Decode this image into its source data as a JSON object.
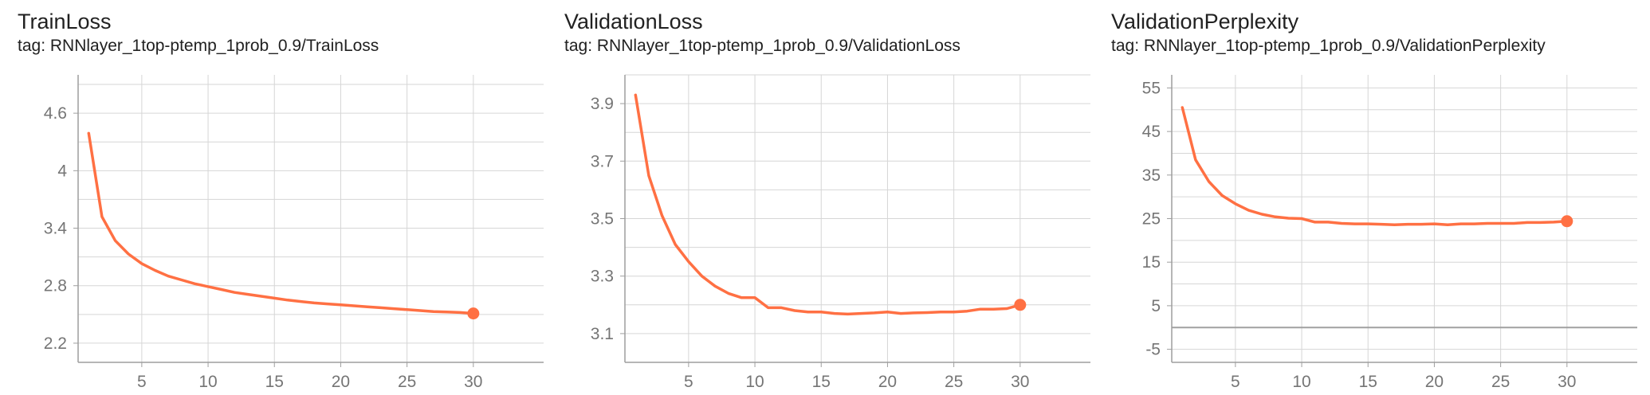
{
  "colors": {
    "series": "#FF7043",
    "grid": "#D6D6D6",
    "axis": "#9E9E9E",
    "tick_text": "#757575",
    "zero_line": "#A0A0A0"
  },
  "chart_data": [
    {
      "type": "line",
      "title": "TrainLoss",
      "subtitle": "tag: RNNlayer_1top-ptemp_1prob_0.9/TrainLoss",
      "xlabel": "",
      "ylabel": "",
      "xlim": [
        0.2,
        35.3
      ],
      "ylim": [
        2.0,
        5.0
      ],
      "xticks": [
        5,
        10,
        15,
        20,
        25,
        30
      ],
      "yticks": [
        2.2,
        2.8,
        3.4,
        4,
        4.6
      ],
      "ytick_labels": [
        "2.2",
        "2.8",
        "3.4",
        "4",
        "4.6"
      ],
      "grid": true,
      "series": [
        {
          "x": [
            1,
            2,
            3,
            4,
            5,
            6,
            7,
            8,
            9,
            10,
            11,
            12,
            13,
            14,
            15,
            16,
            17,
            18,
            19,
            20,
            21,
            22,
            23,
            24,
            25,
            26,
            27,
            28,
            29,
            30
          ],
          "values": [
            4.39,
            3.52,
            3.27,
            3.13,
            3.03,
            2.96,
            2.9,
            2.86,
            2.82,
            2.79,
            2.76,
            2.73,
            2.71,
            2.69,
            2.67,
            2.65,
            2.635,
            2.62,
            2.61,
            2.6,
            2.59,
            2.58,
            2.57,
            2.56,
            2.55,
            2.54,
            2.53,
            2.525,
            2.52,
            2.51
          ]
        }
      ]
    },
    {
      "type": "line",
      "title": "ValidationLoss",
      "subtitle": "tag: RNNlayer_1top-ptemp_1prob_0.9/ValidationLoss",
      "xlabel": "",
      "ylabel": "",
      "xlim": [
        0.2,
        35.3
      ],
      "ylim": [
        3.0,
        4.0
      ],
      "xticks": [
        5,
        10,
        15,
        20,
        25,
        30
      ],
      "yticks": [
        3.1,
        3.3,
        3.5,
        3.7,
        3.9
      ],
      "ytick_labels": [
        "3.1",
        "3.3",
        "3.5",
        "3.7",
        "3.9"
      ],
      "grid": true,
      "series": [
        {
          "x": [
            1,
            2,
            3,
            4,
            5,
            6,
            7,
            8,
            9,
            10,
            11,
            12,
            13,
            14,
            15,
            16,
            17,
            18,
            19,
            20,
            21,
            22,
            23,
            24,
            25,
            26,
            27,
            28,
            29,
            30
          ],
          "values": [
            3.93,
            3.65,
            3.51,
            3.41,
            3.35,
            3.3,
            3.265,
            3.24,
            3.225,
            3.225,
            3.19,
            3.19,
            3.18,
            3.175,
            3.175,
            3.17,
            3.168,
            3.17,
            3.172,
            3.175,
            3.17,
            3.172,
            3.173,
            3.175,
            3.175,
            3.178,
            3.185,
            3.185,
            3.187,
            3.2
          ]
        }
      ]
    },
    {
      "type": "line",
      "title": "ValidationPerplexity",
      "subtitle": "tag: RNNlayer_1top-ptemp_1prob_0.9/ValidationPerplexity",
      "xlabel": "",
      "ylabel": "",
      "xlim": [
        0.2,
        35.3
      ],
      "ylim": [
        -8,
        58
      ],
      "xticks": [
        5,
        10,
        15,
        20,
        25,
        30
      ],
      "yticks": [
        -5,
        5,
        15,
        25,
        35,
        45,
        55
      ],
      "ytick_labels": [
        "-5",
        "5",
        "15",
        "25",
        "35",
        "45",
        "55"
      ],
      "zero_line": true,
      "grid": true,
      "series": [
        {
          "x": [
            1,
            2,
            3,
            4,
            5,
            6,
            7,
            8,
            9,
            10,
            11,
            12,
            13,
            14,
            15,
            16,
            17,
            18,
            19,
            20,
            21,
            22,
            23,
            24,
            25,
            26,
            27,
            28,
            29,
            30
          ],
          "values": [
            50.5,
            38.5,
            33.5,
            30.3,
            28.4,
            26.9,
            26.0,
            25.4,
            25.1,
            25.0,
            24.2,
            24.2,
            23.9,
            23.8,
            23.8,
            23.7,
            23.6,
            23.7,
            23.7,
            23.8,
            23.6,
            23.8,
            23.8,
            23.9,
            23.9,
            23.9,
            24.1,
            24.1,
            24.2,
            24.4
          ]
        }
      ]
    }
  ]
}
